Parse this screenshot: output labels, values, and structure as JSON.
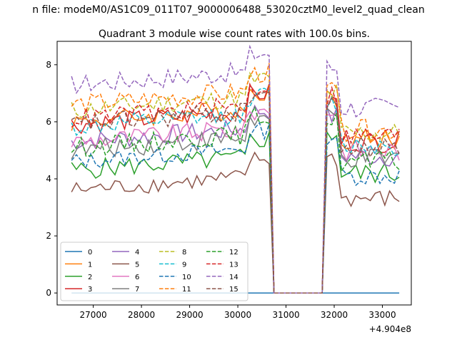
{
  "figure": {
    "suptitle": "n file: modeM0/AS1C09_011T07_9000006488_53020cztM0_level2_quad_clean",
    "title": "Quadrant 3 module wise count rates with 100.0s bins.",
    "offset_label": "+4.904e8"
  },
  "chart_data": {
    "type": "line",
    "title": "Quadrant 3 module wise count rates with 100.0s bins.",
    "xlabel": "",
    "ylabel": "",
    "x_offset": 490400000,
    "xlim": [
      26250,
      33600
    ],
    "ylim": [
      -0.42,
      8.82
    ],
    "xticks": [
      27000,
      28000,
      29000,
      30000,
      31000,
      32000,
      33000
    ],
    "xtick_labels": [
      "27000",
      "28000",
      "29000",
      "30000",
      "31000",
      "32000",
      "33000"
    ],
    "yticks": [
      0,
      2,
      4,
      6,
      8
    ],
    "ytick_labels": [
      "0",
      "2",
      "4",
      "6",
      "8"
    ],
    "grid": false,
    "legend": {
      "placement": "lower-left",
      "columns": 4
    },
    "gap": {
      "start": 30700,
      "end": 31800
    },
    "series": [
      {
        "name": "0",
        "color": "#1f77b4",
        "dash": "solid",
        "base": 0.0,
        "post": 0.0,
        "var": 0.0
      },
      {
        "name": "1",
        "color": "#ff7f0e",
        "dash": "solid",
        "base": 6.0,
        "post": 5.4,
        "var": 0.35
      },
      {
        "name": "2",
        "color": "#2ca02c",
        "dash": "solid",
        "base": 4.3,
        "post": 4.2,
        "var": 0.35
      },
      {
        "name": "3",
        "color": "#d62728",
        "dash": "solid",
        "base": 5.9,
        "post": 5.3,
        "var": 0.35
      },
      {
        "name": "4",
        "color": "#9467bd",
        "dash": "solid",
        "base": 5.3,
        "post": 4.8,
        "var": 0.35
      },
      {
        "name": "5",
        "color": "#8c564b",
        "dash": "solid",
        "base": 3.6,
        "post": 3.3,
        "var": 0.3
      },
      {
        "name": "6",
        "color": "#e377c2",
        "dash": "solid",
        "base": 5.3,
        "post": 5.0,
        "var": 0.35
      },
      {
        "name": "7",
        "color": "#7f7f7f",
        "dash": "solid",
        "base": 5.0,
        "post": 4.7,
        "var": 0.35
      },
      {
        "name": "8",
        "color": "#bcbd22",
        "dash": "dashed",
        "base": 6.4,
        "post": 5.6,
        "var": 0.35
      },
      {
        "name": "9",
        "color": "#17becf",
        "dash": "dashed",
        "base": 5.8,
        "post": 5.2,
        "var": 0.35
      },
      {
        "name": "10",
        "color": "#1f77b4",
        "dash": "dashed",
        "base": 4.6,
        "post": 4.1,
        "var": 0.3
      },
      {
        "name": "11",
        "color": "#ff7f0e",
        "dash": "dashed",
        "base": 6.6,
        "post": 5.7,
        "var": 0.35
      },
      {
        "name": "12",
        "color": "#2ca02c",
        "dash": "dashed",
        "base": 5.1,
        "post": 4.6,
        "var": 0.35
      },
      {
        "name": "13",
        "color": "#d62728",
        "dash": "dashed",
        "base": 6.1,
        "post": 5.5,
        "var": 0.35
      },
      {
        "name": "14",
        "color": "#9467bd",
        "dash": "dashed",
        "base": 7.3,
        "post": 6.5,
        "var": 0.35
      },
      {
        "name": "15",
        "color": "#8c564b",
        "dash": "dashed",
        "base": 5.9,
        "post": 5.1,
        "var": 0.35
      }
    ]
  }
}
